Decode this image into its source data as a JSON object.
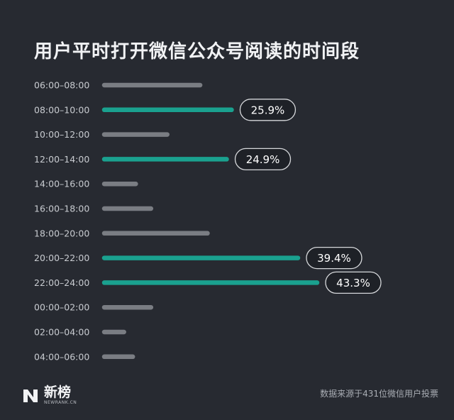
{
  "header": {
    "title": "用户平时打开微信公众号阅读的时间段"
  },
  "chart_data": {
    "type": "bar",
    "orientation": "horizontal",
    "title": "用户平时打开微信公众号阅读的时间段",
    "xlabel": "",
    "ylabel": "",
    "xlim": [
      0,
      50
    ],
    "categories": [
      "06:00–08:00",
      "08:00–10:00",
      "10:00–12:00",
      "12:00–14:00",
      "14:00–16:00",
      "16:00–18:00",
      "18:00–20:00",
      "20:00–22:00",
      "22:00–24:00",
      "00:00–02:00",
      "02:00–04:00",
      "04:00–06:00"
    ],
    "values": [
      19.5,
      25.9,
      12.8,
      24.9,
      6.4,
      9.5,
      21.0,
      39.4,
      43.3,
      9.5,
      4.0,
      5.8
    ],
    "data_labels": [
      "",
      "25.9%",
      "",
      "24.9%",
      "",
      "",
      "",
      "39.4%",
      "43.3%",
      "",
      "",
      ""
    ],
    "highlighted": [
      false,
      true,
      false,
      true,
      false,
      false,
      false,
      true,
      true,
      false,
      false,
      false
    ],
    "colors": {
      "highlight": "#1aa18f",
      "normal": "#7a7d83",
      "label_text": "#ffffff",
      "label_border": "#d6d8db",
      "label_bg": "#1e2127"
    },
    "grid": false,
    "legend": "none"
  },
  "footer": {
    "brand_name": "新榜",
    "brand_sub": "NEWRANK.CN",
    "source": "数据来源于431位微信用户投票"
  }
}
